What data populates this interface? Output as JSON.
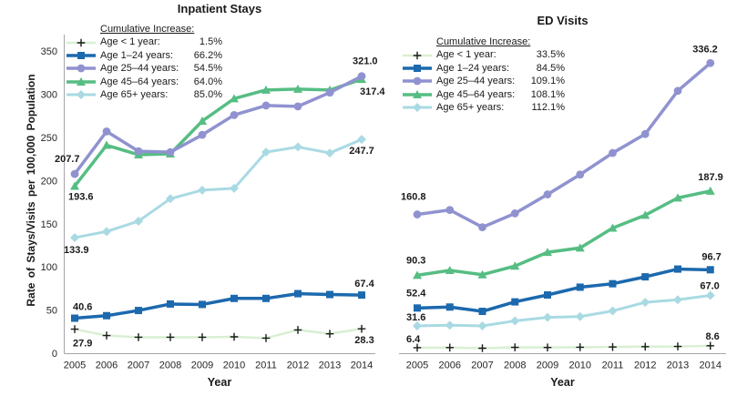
{
  "figure": {
    "legend_header": "Cumulative Increase:",
    "axis_color": "#a6a6a6",
    "text_color": "#1a1a1a",
    "tick_color": "#262626"
  },
  "chart_data": [
    {
      "type": "line",
      "title": "Inpatient Stays",
      "xlabel": "Year",
      "ylabel": "Rate of Stays/Visits per 100,000 Population",
      "legend_header": "Cumulative Increase:",
      "legend_position": "upper-left",
      "grid": false,
      "x": [
        2005,
        2006,
        2007,
        2008,
        2009,
        2010,
        2011,
        2012,
        2013,
        2014
      ],
      "ylim": [
        0,
        350
      ],
      "yticks": [
        0,
        50,
        100,
        150,
        200,
        250,
        300,
        350
      ],
      "series": [
        {
          "name": "Age < 1 year:",
          "cumulative_increase": "1.5%",
          "marker": "plus",
          "color": "#d9efd2",
          "marker_color": "#1a1a1a",
          "values": [
            27.9,
            20.5,
            18.5,
            18.5,
            18.5,
            19.0,
            17.5,
            27.0,
            22.5,
            28.3
          ],
          "first_label": "27.9",
          "last_label": "28.3"
        },
        {
          "name": "Age 1–24 years:",
          "cumulative_increase": "66.2%",
          "marker": "square",
          "color": "#1c69ae",
          "marker_color": "#1c69ae",
          "values": [
            40.6,
            43.5,
            49.5,
            57.0,
            56.5,
            63.5,
            63.5,
            69.0,
            68.0,
            67.4
          ],
          "first_label": "40.6",
          "last_label": "67.4"
        },
        {
          "name": "Age 25–44 years:",
          "cumulative_increase": "54.5%",
          "marker": "circle",
          "color": "#9092d0",
          "marker_color": "#9092d0",
          "values": [
            207.7,
            257,
            234,
            233,
            253,
            276,
            287,
            286,
            302,
            321.0
          ],
          "first_label": "207.7",
          "last_label": "321.0"
        },
        {
          "name": "Age 45–64 years:",
          "cumulative_increase": "64.0%",
          "marker": "triangle",
          "color": "#56bd83",
          "marker_color": "#56bd83",
          "values": [
            193.6,
            241,
            230,
            231,
            269,
            295,
            305,
            306,
            305,
            317.4
          ],
          "first_label": "193.6",
          "last_label": "317.4"
        },
        {
          "name": "Age 65+ years:",
          "cumulative_increase": "85.0%",
          "marker": "diamond",
          "color": "#a9dae3",
          "marker_color": "#a9dae3",
          "values": [
            133.9,
            141,
            153,
            179,
            189,
            191,
            233,
            239,
            232,
            247.7
          ],
          "first_label": "133.9",
          "last_label": "247.7"
        }
      ]
    },
    {
      "type": "line",
      "title": "ED Visits",
      "xlabel": "Year",
      "ylabel": "Rate of Stays/Visits per 100,000 Population",
      "legend_header": "Cumulative Increase:",
      "legend_position": "upper-left",
      "grid": false,
      "x": [
        2005,
        2006,
        2007,
        2008,
        2009,
        2010,
        2011,
        2012,
        2013,
        2014
      ],
      "ylim": [
        0,
        350
      ],
      "yticks": [],
      "series": [
        {
          "name": "Age < 1 year:",
          "cumulative_increase": "33.5%",
          "marker": "plus",
          "color": "#d9efd2",
          "marker_color": "#1a1a1a",
          "values": [
            6.4,
            6.5,
            5.8,
            6.8,
            6.7,
            6.9,
            7.2,
            7.6,
            7.8,
            8.6
          ],
          "first_label": "6.4",
          "last_label": "8.6"
        },
        {
          "name": "Age 1–24 years:",
          "cumulative_increase": "84.5%",
          "marker": "square",
          "color": "#1c69ae",
          "marker_color": "#1c69ae",
          "values": [
            52.4,
            53.5,
            48.5,
            59.5,
            67.5,
            76.5,
            80.5,
            88.5,
            97.5,
            96.7
          ],
          "first_label": "52.4",
          "last_label": "96.7"
        },
        {
          "name": "Age 25–44 years:",
          "cumulative_increase": "109.1%",
          "marker": "circle",
          "color": "#9092d0",
          "marker_color": "#9092d0",
          "values": [
            160.8,
            166,
            146,
            162,
            184,
            207,
            232,
            254,
            304,
            336.2
          ],
          "first_label": "160.8",
          "last_label": "336.2"
        },
        {
          "name": "Age 45–64 years:",
          "cumulative_increase": "108.1%",
          "marker": "triangle",
          "color": "#56bd83",
          "marker_color": "#56bd83",
          "values": [
            90.3,
            96,
            91,
            101,
            117,
            122,
            145,
            160,
            180,
            187.9
          ],
          "first_label": "90.3",
          "last_label": "187.9"
        },
        {
          "name": "Age 65+ years:",
          "cumulative_increase": "112.1%",
          "marker": "diamond",
          "color": "#a9dae3",
          "marker_color": "#a9dae3",
          "values": [
            31.6,
            32.5,
            31.6,
            37.5,
            41.5,
            42.5,
            49.0,
            59.0,
            62.0,
            67.0
          ],
          "first_label": "31.6",
          "last_label": "67.0"
        }
      ]
    }
  ]
}
